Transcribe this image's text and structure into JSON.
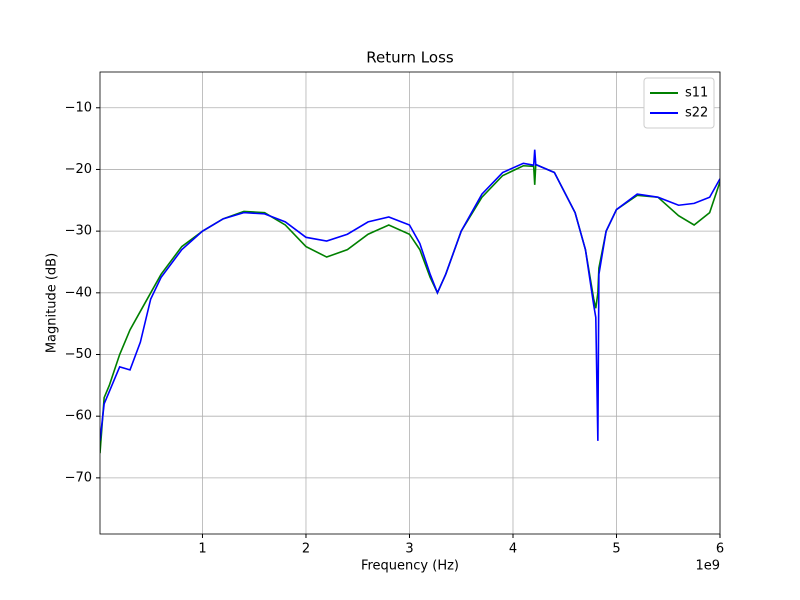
{
  "chart_data": {
    "type": "line",
    "title": "Return Loss",
    "x_label": "Frequency (Hz)",
    "y_label": "Magnitude (dB)",
    "x_offset_label": "1e9",
    "x": [
      0.01,
      0.05,
      0.1,
      0.2,
      0.3,
      0.4,
      0.5,
      0.6,
      0.8,
      1.0,
      1.2,
      1.4,
      1.6,
      1.8,
      2.0,
      2.2,
      2.4,
      2.6,
      2.8,
      3.0,
      3.1,
      3.2,
      3.27,
      3.35,
      3.5,
      3.7,
      3.9,
      4.1,
      4.2,
      4.21,
      4.22,
      4.4,
      4.6,
      4.7,
      4.78,
      4.8,
      4.82,
      4.83,
      4.9,
      5.0,
      5.2,
      5.4,
      5.6,
      5.75,
      5.9,
      6.0
    ],
    "series": [
      {
        "name": "s11",
        "color": "#008000",
        "values": [
          -66,
          -57,
          -55,
          -50,
          -46,
          -43,
          -40,
          -37,
          -32.5,
          -30,
          -28,
          -26.8,
          -27,
          -29,
          -32.5,
          -34.2,
          -33,
          -30.5,
          -29,
          -30.5,
          -33,
          -37.5,
          -40,
          -37,
          -30,
          -24.5,
          -21,
          -19.4,
          -19.5,
          -22.5,
          -19.2,
          -20.5,
          -27,
          -33,
          -41,
          -42.5,
          -40,
          -36,
          -30,
          -26.5,
          -24.2,
          -24.5,
          -27.5,
          -29,
          -27,
          -22
        ]
      },
      {
        "name": "s22",
        "color": "#0000ff",
        "values": [
          -64,
          -58,
          -56,
          -52,
          -52.5,
          -48,
          -41,
          -37.5,
          -33,
          -30,
          -28,
          -27,
          -27.2,
          -28.5,
          -31,
          -31.6,
          -30.5,
          -28.5,
          -27.7,
          -29,
          -32,
          -37,
          -40,
          -37,
          -30,
          -24,
          -20.5,
          -19,
          -19.3,
          -16.8,
          -19.2,
          -20.5,
          -27,
          -33,
          -42,
          -44,
          -64,
          -37,
          -30,
          -26.5,
          -24,
          -24.5,
          -25.8,
          -25.5,
          -24.5,
          -21.5
        ]
      }
    ],
    "xlim": [
      0.01,
      6
    ],
    "ylim": [
      -79.1,
      -4.2
    ],
    "xticks": [
      1,
      2,
      3,
      4,
      5,
      6
    ],
    "yticks": [
      {
        "value": -70,
        "label": "−70"
      },
      {
        "value": -60,
        "label": "−60"
      },
      {
        "value": -50,
        "label": "−50"
      },
      {
        "value": -40,
        "label": "−40"
      },
      {
        "value": -30,
        "label": "−30"
      },
      {
        "value": -20,
        "label": "−20"
      },
      {
        "value": -10,
        "label": "−10"
      }
    ],
    "grid": true,
    "legend": "upper right"
  }
}
